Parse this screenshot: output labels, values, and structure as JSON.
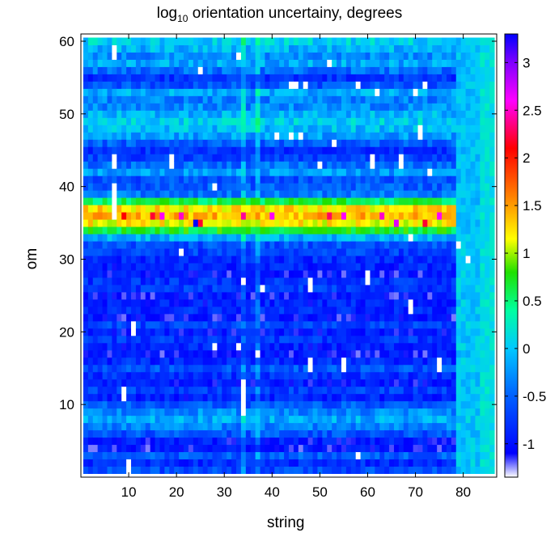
{
  "chart_data": {
    "type": "heatmap",
    "title": {
      "prefix": "log",
      "subscript": "10",
      "suffix": " orientation uncertainy, degrees"
    },
    "xlabel": "string",
    "ylabel": "om",
    "xlim": [
      0,
      87
    ],
    "ylim": [
      0,
      61
    ],
    "x_ticks": [
      10,
      20,
      30,
      40,
      50,
      60,
      70,
      80
    ],
    "y_ticks": [
      10,
      20,
      30,
      40,
      50,
      60
    ],
    "x_tick_labels": [
      "10",
      "20",
      "30",
      "40",
      "50",
      "60",
      "70",
      "80"
    ],
    "y_tick_labels": [
      "10",
      "20",
      "30",
      "40",
      "50",
      "60"
    ],
    "colorbar": {
      "range": [
        -1.35,
        3.3
      ],
      "ticks": [
        -1,
        -0.5,
        0,
        0.5,
        1,
        1.5,
        2,
        2.5,
        3
      ],
      "tick_labels": [
        "-1",
        "-0.5",
        "0",
        "0.5",
        "1",
        "1.5",
        "2",
        "2.5",
        "3"
      ],
      "stops": [
        {
          "v": -1.35,
          "color": "#ffffff"
        },
        {
          "v": -1.1,
          "color": "#0000ff"
        },
        {
          "v": -0.5,
          "color": "#0060ff"
        },
        {
          "v": 0.0,
          "color": "#00c8ff"
        },
        {
          "v": 0.4,
          "color": "#00ffa0"
        },
        {
          "v": 0.8,
          "color": "#20e000"
        },
        {
          "v": 1.15,
          "color": "#ffff00"
        },
        {
          "v": 1.6,
          "color": "#ff8000"
        },
        {
          "v": 2.1,
          "color": "#ff0000"
        },
        {
          "v": 2.6,
          "color": "#ff00ff"
        },
        {
          "v": 3.0,
          "color": "#8000ff"
        },
        {
          "v": 3.3,
          "color": "#0000ff"
        }
      ]
    },
    "dimensions": {
      "strings": 86,
      "om_bins": 60
    },
    "row_profile": [
      -0.65,
      -0.85,
      -0.55,
      -1.0,
      -0.95,
      -0.6,
      -0.35,
      -0.15,
      -0.3,
      -0.55,
      -0.9,
      -0.7,
      -0.95,
      -0.8,
      -0.6,
      -0.85,
      -1.0,
      -0.9,
      -0.75,
      -0.95,
      -0.7,
      -1.0,
      -0.85,
      -0.9,
      -1.0,
      -0.75,
      -0.8,
      -1.0,
      -0.9,
      -0.85,
      -0.7,
      -0.6,
      -0.1,
      0.7,
      1.2,
      1.4,
      1.25,
      0.6,
      -0.4,
      -0.55,
      -0.6,
      -0.2,
      -0.45,
      -0.7,
      -0.8,
      -0.55,
      -0.2,
      -0.05,
      0.05,
      -0.1,
      -0.3,
      -0.35,
      -0.15,
      -0.6,
      -0.8,
      -0.45,
      -0.15,
      -0.3,
      -0.1,
      0.05
    ],
    "spike_columns": [
      34,
      37
    ],
    "high_cells": [
      {
        "string": 24,
        "om": 35,
        "value": 3.3
      },
      {
        "string": 9,
        "om": 36,
        "value": 2.1
      },
      {
        "string": 15,
        "om": 36,
        "value": 2.2
      },
      {
        "string": 17,
        "om": 36,
        "value": 2.6
      },
      {
        "string": 21,
        "om": 36,
        "value": 2.5
      },
      {
        "string": 25,
        "om": 35,
        "value": 2.2
      },
      {
        "string": 34,
        "om": 36,
        "value": 2.4
      },
      {
        "string": 40,
        "om": 36,
        "value": 2.6
      },
      {
        "string": 52,
        "om": 36,
        "value": 2.3
      },
      {
        "string": 55,
        "om": 36,
        "value": 2.6
      },
      {
        "string": 63,
        "om": 36,
        "value": 2.5
      },
      {
        "string": 66,
        "om": 35,
        "value": 2.7
      },
      {
        "string": 72,
        "om": 35,
        "value": 2.2
      },
      {
        "string": 75,
        "om": 36,
        "value": 2.6
      }
    ],
    "white_cells": [
      [
        7,
        59
      ],
      [
        7,
        58
      ],
      [
        25,
        56
      ],
      [
        33,
        58
      ],
      [
        44,
        54
      ],
      [
        45,
        54
      ],
      [
        47,
        54
      ],
      [
        52,
        57
      ],
      [
        58,
        54
      ],
      [
        62,
        53
      ],
      [
        70,
        53
      ],
      [
        72,
        54
      ],
      [
        41,
        47
      ],
      [
        44,
        47
      ],
      [
        46,
        47
      ],
      [
        53,
        46
      ],
      [
        71,
        47
      ],
      [
        71,
        48
      ],
      [
        7,
        44
      ],
      [
        7,
        43
      ],
      [
        19,
        44
      ],
      [
        19,
        43
      ],
      [
        28,
        40
      ],
      [
        50,
        43
      ],
      [
        61,
        44
      ],
      [
        61,
        43
      ],
      [
        67,
        44
      ],
      [
        67,
        43
      ],
      [
        73,
        42
      ],
      [
        7,
        40
      ],
      [
        7,
        39
      ],
      [
        7,
        38
      ],
      [
        7,
        37
      ],
      [
        7,
        36
      ],
      [
        21,
        31
      ],
      [
        69,
        33
      ],
      [
        79,
        32
      ],
      [
        81,
        30
      ],
      [
        34,
        27
      ],
      [
        38,
        26
      ],
      [
        48,
        27
      ],
      [
        48,
        26
      ],
      [
        60,
        28
      ],
      [
        60,
        27
      ],
      [
        69,
        24
      ],
      [
        69,
        23
      ],
      [
        11,
        21
      ],
      [
        11,
        20
      ],
      [
        28,
        18
      ],
      [
        33,
        18
      ],
      [
        37,
        17
      ],
      [
        48,
        16
      ],
      [
        48,
        15
      ],
      [
        55,
        16
      ],
      [
        55,
        15
      ],
      [
        75,
        16
      ],
      [
        75,
        15
      ],
      [
        9,
        12
      ],
      [
        9,
        11
      ],
      [
        34,
        13
      ],
      [
        34,
        12
      ],
      [
        34,
        11
      ],
      [
        34,
        10
      ],
      [
        34,
        9
      ],
      [
        10,
        1
      ],
      [
        10,
        2
      ],
      [
        58,
        3
      ]
    ]
  }
}
